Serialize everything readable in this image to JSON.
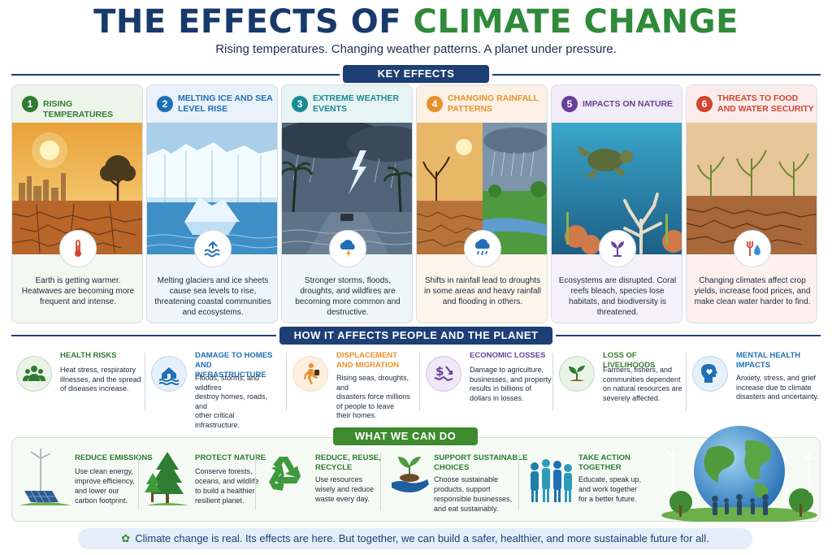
{
  "title_part1": "THE EFFECTS OF",
  "title_part2": "CLIMATE CHANGE",
  "subtitle": "Rising temperatures. Changing weather patterns. A planet under pressure.",
  "sections": {
    "key_effects": "KEY EFFECTS",
    "people": "HOW IT AFFECTS PEOPLE AND THE PLANET",
    "actions": "WHAT WE CAN DO"
  },
  "effects": [
    {
      "num": "1",
      "title": "RISING TEMPERATURES",
      "desc": "Earth is getting warmer. Heatwaves are becoming more frequent and intense.",
      "color": "#2f7d32",
      "icon": "thermometer-icon"
    },
    {
      "num": "2",
      "title": "MELTING ICE AND SEA LEVEL RISE",
      "desc": "Melting glaciers and ice sheets cause sea levels to rise, threatening coastal communities and ecosystems.",
      "color": "#1f6fb5",
      "icon": "sea-level-icon"
    },
    {
      "num": "3",
      "title": "EXTREME WEATHER EVENTS",
      "desc": "Stronger storms, floods, droughts, and wildfires are becoming more common and destructive.",
      "color": "#1b8a95",
      "icon": "storm-cloud-icon"
    },
    {
      "num": "4",
      "title": "CHANGING RAINFALL PATTERNS",
      "desc": "Shifts in rainfall lead to droughts in some areas and heavy rainfall and flooding in others.",
      "color": "#e8912b",
      "icon": "rain-cloud-icon"
    },
    {
      "num": "5",
      "title": "IMPACTS ON NATURE",
      "desc": "Ecosystems are disrupted. Coral reefs bleach, species lose habitats, and biodiversity is threatened.",
      "color": "#6a3f9a",
      "icon": "plant-icon"
    },
    {
      "num": "6",
      "title": "THREATS TO FOOD AND WATER SECURITY",
      "desc": "Changing climates affect crop yields, increase food prices, and make clean water harder to find.",
      "color": "#d2452f",
      "icon": "fork-water-icon"
    }
  ],
  "impacts": [
    {
      "title": "HEALTH RISKS",
      "desc": [
        "Heat stress, respiratory",
        "illnesses, and the spread",
        "of diseases increase."
      ],
      "color": "#2f7d32",
      "icon": "people-group-icon"
    },
    {
      "title": "DAMAGE TO HOMES|AND INFRASTRUCTURE",
      "desc": [
        "Floods, storms, and wildfires",
        "destroy homes, roads, and",
        "other critical infrastructure."
      ],
      "color": "#1f6fb5",
      "icon": "flooded-house-icon"
    },
    {
      "title": "DISPLACEMENT|AND MIGRATION",
      "desc": [
        "Rising seas, droughts, and",
        "disasters force millions",
        "of people to leave",
        "their homes."
      ],
      "color": "#e8912b",
      "icon": "walking-person-icon"
    },
    {
      "title": "ECONOMIC LOSSES",
      "desc": [
        "Damage to agriculture,",
        "businesses, and property",
        "results in billions of",
        "dollars in losses."
      ],
      "color": "#6a3f9a",
      "icon": "dollar-decline-icon"
    },
    {
      "title": "LOSS OF LIVELIHOODS",
      "desc": [
        "Farmers, fishers, and",
        "communities dependent",
        "on natural resources are",
        "severely affected."
      ],
      "color": "#2f7d32",
      "icon": "sprout-icon"
    },
    {
      "title": "MENTAL HEALTH|IMPACTS",
      "desc": [
        "Anxiety, stress, and grief",
        "increase due to climate",
        "disasters and uncertainty."
      ],
      "color": "#1f6fb5",
      "icon": "head-heart-icon"
    }
  ],
  "actions": [
    {
      "title": "REDUCE EMISSIONS",
      "desc": [
        "Use clean energy,",
        "improve efficiency,",
        "and lower our",
        "carbon footprint."
      ],
      "icon": "wind-solar-icon"
    },
    {
      "title": "PROTECT NATURE",
      "desc": [
        "Conserve forests,",
        "oceans, and wildlife",
        "to build a healthier,",
        "resilient planet."
      ],
      "icon": "trees-icon"
    },
    {
      "title": "REDUCE, REUSE,|RECYCLE",
      "desc": [
        "Use resources",
        "wisely and reduce",
        "waste every day."
      ],
      "icon": "recycle-icon"
    },
    {
      "title": "SUPPORT SUSTAINABLE|CHOICES",
      "desc": [
        "Choose sustainable",
        "products, support",
        "responsible businesses,",
        "and eat sustainably."
      ],
      "icon": "seedling-hand-icon"
    },
    {
      "title": "TAKE ACTION|TOGETHER",
      "desc": [
        "Educate, speak up,",
        "and work together",
        "for a better future."
      ],
      "icon": "people-together-icon"
    }
  ],
  "footer": "Climate change is real. Its effects are here. But together, we can build a safer, healthier, and more sustainable future for all."
}
